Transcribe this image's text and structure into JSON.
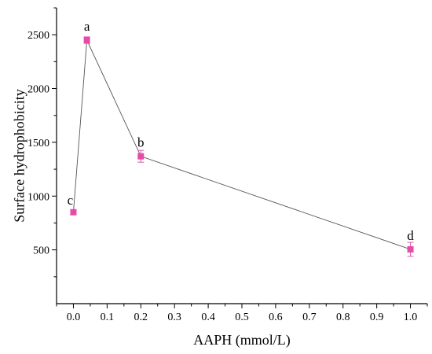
{
  "chart_data": {
    "type": "line",
    "title": "",
    "xlabel": "AAPH (mmol/L)",
    "ylabel": "Surface hydrophobicity",
    "xlim": [
      -0.05,
      1.05
    ],
    "ylim": [
      0,
      2750
    ],
    "x_ticks": [
      0.0,
      0.1,
      0.2,
      0.3,
      0.4,
      0.5,
      0.6,
      0.7,
      0.8,
      0.9,
      1.0
    ],
    "x_tick_labels": [
      "0.0",
      "0.1",
      "0.2",
      "0.3",
      "0.4",
      "0.5",
      "0.6",
      "0.7",
      "0.8",
      "0.9",
      "1.0"
    ],
    "y_ticks": [
      500,
      1000,
      1500,
      2000,
      2500
    ],
    "y_tick_labels": [
      "500",
      "1000",
      "1500",
      "2000",
      "2500"
    ],
    "grid": false,
    "series": [
      {
        "x": [
          0.0,
          0.04,
          0.2,
          1.0
        ],
        "y": [
          850,
          2450,
          1370,
          505
        ],
        "error": [
          20,
          30,
          55,
          65
        ],
        "labels": [
          "c",
          "a",
          "b",
          "d"
        ],
        "marker": "square",
        "marker_color": "#e84aa8",
        "line_color": "#555555"
      }
    ]
  }
}
